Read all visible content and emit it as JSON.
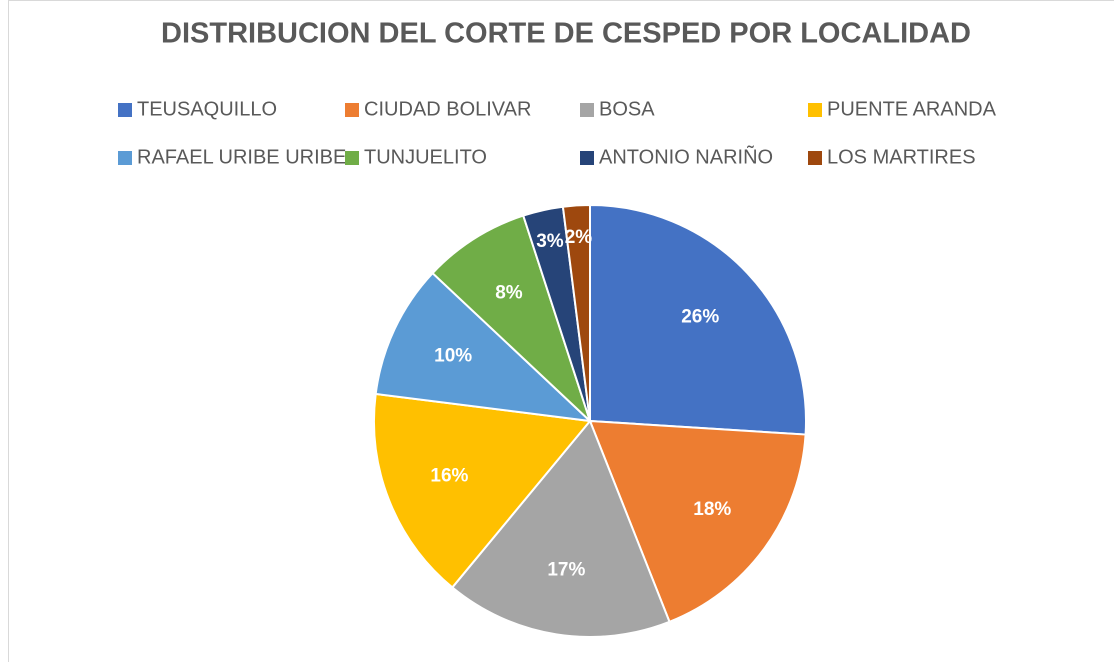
{
  "chart_data": {
    "type": "pie",
    "title": "DISTRIBUCION DEL CORTE DE CESPED POR LOCALIDAD",
    "categories": [
      "TEUSAQUILLO",
      "CIUDAD BOLIVAR",
      "BOSA",
      "PUENTE ARANDA",
      "RAFAEL URIBE URIBE",
      "TUNJUELITO",
      "ANTONIO NARIÑO",
      "LOS MARTIRES"
    ],
    "values": [
      26,
      18,
      17,
      16,
      10,
      8,
      3,
      2
    ],
    "value_labels": [
      "26%",
      "18%",
      "17%",
      "16%",
      "10%",
      "8%",
      "3%",
      "2%"
    ],
    "colors": [
      "#4472c4",
      "#ed7d31",
      "#a5a5a5",
      "#ffc000",
      "#5b9bd5",
      "#70ad47",
      "#264478",
      "#9e480e"
    ],
    "legend": "top"
  }
}
